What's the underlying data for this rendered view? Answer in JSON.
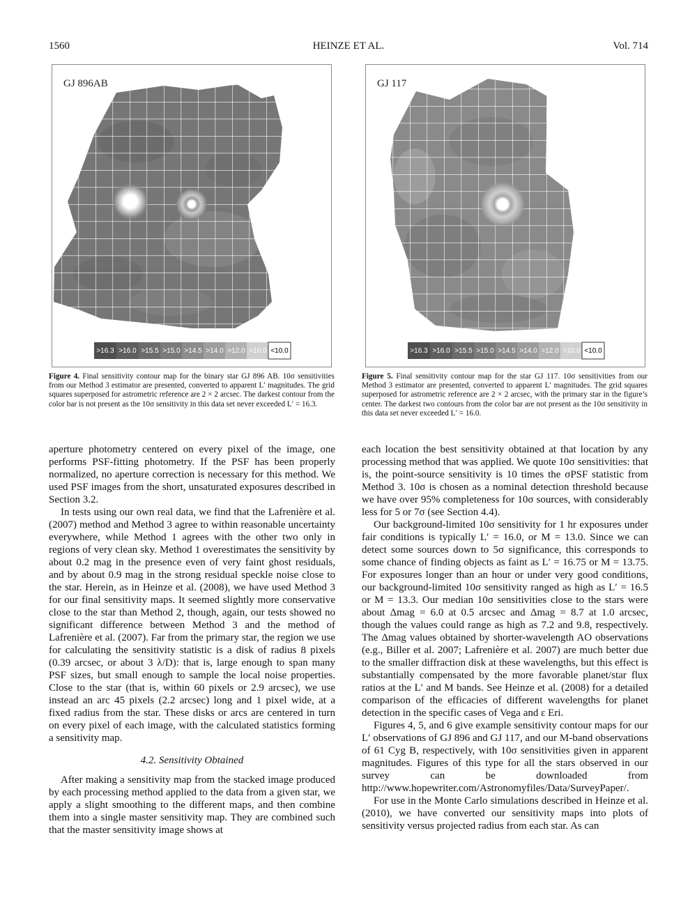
{
  "header": {
    "page_number": "1560",
    "authors": "HEINZE ET AL.",
    "volume": "Vol. 714"
  },
  "figures": [
    {
      "label": "GJ 896AB",
      "legend": [
        ">16.3",
        ">16.0",
        ">15.5",
        ">15.0",
        ">14.5",
        ">14.0",
        ">12.0",
        ">10.0",
        "<10.0"
      ],
      "caption_label": "Figure 4.",
      "caption_text": "Final sensitivity contour map for the binary star GJ 896 AB. 10σ sensitivities from our Method 3 estimator are presented, converted to apparent L′ magnitudes. The grid squares superposed for astrometric reference are 2 × 2 arcsec. The darkest contour from the color bar is not present as the 10σ sensitivity in this data set never exceeded L′ = 16.3."
    },
    {
      "label": "GJ 117",
      "legend": [
        ">16.3",
        ">16.0",
        ">15.5",
        ">15.0",
        ">14.5",
        ">14.0",
        ">12.0",
        ">10.0",
        "<10.0"
      ],
      "caption_label": "Figure 5.",
      "caption_text": "Final sensitivity contour map for the star GJ 117. 10σ sensitivities from our Method 3 estimator are presented, converted to apparent L′ magnitudes. The grid squares superposed for astrometric reference are 2 × 2 arcsec, with the primary star in the figure’s center. The darkest two contours from the color bar are not present as the 10σ sensitivity in this data set never exceeded L′ = 16.0."
    }
  ],
  "legend_colors": [
    "#4f4f4f",
    "#5e5e5e",
    "#6c6c6c",
    "#7b7b7b",
    "#8c8c8c",
    "#9d9d9d",
    "#b2b2b2",
    "#d0d0d0",
    "#ffffff"
  ],
  "left_column": {
    "p1": "aperture photometry centered on every pixel of the image, one performs PSF-fitting photometry. If the PSF has been properly normalized, no aperture correction is necessary for this method. We used PSF images from the short, unsaturated exposures described in Section 3.2.",
    "p2": "In tests using our own real data, we find that the Lafrenière et al. (2007) method and Method 3 agree to within reasonable uncertainty everywhere, while Method 1 agrees with the other two only in regions of very clean sky. Method 1 overestimates the sensitivity by about 0.2 mag in the presence even of very faint ghost residuals, and by about 0.9 mag in the strong residual speckle noise close to the star. Herein, as in Heinze et al. (2008), we have used Method 3 for our final sensitivity maps. It seemed slightly more conservative close to the star than Method 2, though, again, our tests showed no significant difference between Method 3 and the method of Lafrenière et al. (2007). Far from the primary star, the region we use for calculating the sensitivity statistic is a disk of radius 8 pixels (0.39 arcsec, or about 3 λ/D): that is, large enough to span many PSF sizes, but small enough to sample the local noise properties. Close to the star (that is, within 60 pixels or 2.9 arcsec), we use instead an arc 45 pixels (2.2 arcsec) long and 1 pixel wide, at a fixed radius from the star. These disks or arcs are centered in turn on every pixel of each image, with the calculated statistics forming a sensitivity map.",
    "section_title": "4.2. Sensitivity Obtained",
    "p3": "After making a sensitivity map from the stacked image produced by each processing method applied to the data from a given star, we apply a slight smoothing to the different maps, and then combine them into a single master sensitivity map. They are combined such that the master sensitivity image shows at"
  },
  "right_column": {
    "p1": "each location the best sensitivity obtained at that location by any processing method that was applied. We quote 10σ sensitivities: that is, the point-source sensitivity is 10 times the σPSF statistic from Method 3. 10σ is chosen as a nominal detection threshold because we have over 95% completeness for 10σ sources, with considerably less for 5 or 7σ (see Section 4.4).",
    "p2": "Our background-limited 10σ sensitivity for 1 hr exposures under fair conditions is typically L′ = 16.0, or M = 13.0. Since we can detect some sources down to 5σ significance, this corresponds to some chance of finding objects as faint as L′ = 16.75 or M = 13.75. For exposures longer than an hour or under very good conditions, our background-limited 10σ sensitivity ranged as high as L′ = 16.5 or M = 13.3. Our median 10σ sensitivities close to the stars were about Δmag = 6.0 at 0.5 arcsec and Δmag = 8.7 at 1.0 arcsec, though the values could range as high as 7.2 and 9.8, respectively. The Δmag values obtained by shorter-wavelength AO observations (e.g., Biller et al. 2007; Lafrenière et al. 2007) are much better due to the smaller diffraction disk at these wavelengths, but this effect is substantially compensated by the more favorable planet/star flux ratios at the L′ and M bands. See Heinze et al. (2008) for a detailed comparison of the efficacies of different wavelengths for planet detection in the specific cases of Vega and ε Eri.",
    "p3": "Figures 4, 5, and 6 give example sensitivity contour maps for our L′ observations of GJ 896 and GJ 117, and our M-band observations of 61 Cyg B, respectively, with 10σ sensitivities given in apparent magnitudes. Figures of this type for all the stars observed in our survey can be downloaded from http://www.hopewriter.com/Astronomyfiles/Data/SurveyPaper/.",
    "p4": "For use in the Monte Carlo simulations described in Heinze et al. (2010), we have converted our sensitivity maps into plots of sensitivity versus projected radius from each star. As can"
  }
}
